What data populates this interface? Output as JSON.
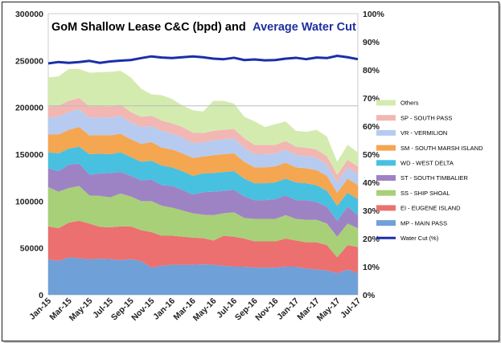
{
  "chart_data": {
    "type": "area",
    "title_main": "GoM Shallow Lease C&C  (bpd) and",
    "title_accent": "Average Water Cut",
    "x": [
      "Jan-15",
      "Feb-15",
      "Mar-15",
      "Apr-15",
      "May-15",
      "Jun-15",
      "Jul-15",
      "Aug-15",
      "Sep-15",
      "Oct-15",
      "Nov-15",
      "Dec-15",
      "Jan-16",
      "Feb-16",
      "Mar-16",
      "Apr-16",
      "May-16",
      "Jun-16",
      "Jul-16",
      "Aug-16",
      "Sep-16",
      "Oct-16",
      "Nov-16",
      "Dec-16",
      "Jan-17",
      "Feb-17",
      "Mar-17",
      "Apr-17",
      "May-17",
      "Jun-17",
      "Jul-17"
    ],
    "x_tick_labels": [
      "Jan-15",
      "Mar-15",
      "May-15",
      "Jul-15",
      "Sep-15",
      "Nov-15",
      "Jan-16",
      "Mar-16",
      "May-16",
      "Jul-16",
      "Sep-16",
      "Nov-16",
      "Jan-17",
      "Mar-17",
      "May-17",
      "Jul-17"
    ],
    "ylim": [
      0,
      300000
    ],
    "y_tick_labels": [
      "0",
      "50000",
      "100000",
      "150000",
      "200000",
      "250000",
      "300000"
    ],
    "y2lim": [
      0,
      100
    ],
    "y2_tick_labels": [
      "0%",
      "10%",
      "20%",
      "30%",
      "40%",
      "50%",
      "60%",
      "70%",
      "80%",
      "90%",
      "100%"
    ],
    "stacked": true,
    "series": [
      {
        "name": "MP - MAIN PASS",
        "color": "#6fa0d8",
        "values": [
          38000,
          36000,
          40000,
          39000,
          38000,
          38500,
          38000,
          37000,
          38000,
          36000,
          29000,
          31000,
          32000,
          32000,
          32000,
          32500,
          32000,
          31000,
          30000,
          30000,
          29000,
          29000,
          29000,
          30000,
          30000,
          28000,
          27000,
          26000,
          23000,
          27000,
          23000
        ]
      },
      {
        "name": "EI - EUGENE ISLAND",
        "color": "#ec7070",
        "values": [
          35000,
          35000,
          37000,
          40000,
          38000,
          34000,
          34000,
          36000,
          35000,
          33000,
          38000,
          32000,
          31000,
          30000,
          29000,
          28000,
          26000,
          32000,
          32000,
          30000,
          28000,
          28000,
          28000,
          30000,
          28000,
          28000,
          29000,
          27000,
          17000,
          26000,
          28000
        ]
      },
      {
        "name": "SS - SHIP SHOAL",
        "color": "#a8d078",
        "values": [
          42000,
          39000,
          37000,
          37000,
          30000,
          33000,
          32000,
          35000,
          32000,
          31000,
          33000,
          32000,
          30000,
          28000,
          26000,
          25000,
          27000,
          24000,
          26000,
          22000,
          24000,
          24000,
          24000,
          25000,
          23000,
          24000,
          24000,
          23000,
          22000,
          23000,
          20000
        ]
      },
      {
        "name": "ST - SOUTH TIMBALIER",
        "color": "#9e83c4",
        "values": [
          20000,
          22000,
          25000,
          24000,
          22000,
          24000,
          26000,
          23000,
          22000,
          22000,
          23000,
          22000,
          23000,
          22000,
          20000,
          24000,
          25000,
          24000,
          24000,
          23000,
          20000,
          20000,
          21000,
          21000,
          20000,
          21000,
          19000,
          18000,
          17000,
          18000,
          14000
        ]
      },
      {
        "name": "WD - WEST DELTA",
        "color": "#48c0e0",
        "values": [
          17000,
          19000,
          17000,
          18000,
          22000,
          21000,
          20000,
          21000,
          20000,
          20000,
          20000,
          21000,
          20000,
          20000,
          20000,
          20000,
          20000,
          20000,
          20000,
          19000,
          18000,
          18000,
          18000,
          18000,
          19000,
          18000,
          18000,
          17000,
          16000,
          15000,
          17000
        ]
      },
      {
        "name": "SM - SOUTH MARSH ISLAND",
        "color": "#f5a650",
        "values": [
          19000,
          20000,
          20000,
          21000,
          20000,
          20000,
          20000,
          20000,
          19000,
          19000,
          20000,
          19000,
          19000,
          19000,
          19000,
          18000,
          19000,
          19000,
          19000,
          18000,
          17000,
          17000,
          17000,
          17000,
          16000,
          16000,
          16000,
          16000,
          14000,
          15000,
          15000
        ]
      },
      {
        "name": "VR - VERMILION",
        "color": "#b7cbf0",
        "values": [
          18000,
          19000,
          19000,
          19000,
          19000,
          19000,
          19000,
          19000,
          18000,
          18000,
          17000,
          18000,
          17000,
          17000,
          16000,
          15000,
          16000,
          16000,
          16000,
          15000,
          14000,
          14000,
          14000,
          14000,
          13000,
          13000,
          13000,
          12000,
          11000,
          12000,
          12000
        ]
      },
      {
        "name": "SP - SOUTH PASS",
        "color": "#f2b7b2",
        "values": [
          12000,
          12000,
          12000,
          12000,
          12000,
          12000,
          12000,
          12000,
          11000,
          11000,
          11000,
          11000,
          11000,
          11000,
          11000,
          10000,
          10000,
          10000,
          10000,
          10000,
          10000,
          10000,
          9000,
          9000,
          9000,
          9000,
          9000,
          9000,
          8000,
          8000,
          8000
        ]
      },
      {
        "name": "Others",
        "color": "#d4ebb0",
        "values": [
          31000,
          31000,
          34000,
          31000,
          36000,
          36000,
          37000,
          36000,
          37000,
          30000,
          23000,
          27000,
          26000,
          23000,
          24000,
          23000,
          32000,
          31000,
          27000,
          23000,
          25000,
          19000,
          22000,
          21000,
          17000,
          17000,
          21000,
          21000,
          14000,
          16000,
          15000
        ]
      }
    ],
    "line_series": {
      "name": "Water Cut (%)",
      "color": "#1b2fa8",
      "axis": "right",
      "values": [
        82.3,
        82.8,
        82.5,
        82.8,
        83.2,
        82.5,
        83.0,
        83.3,
        83.5,
        84.2,
        84.8,
        84.4,
        84.2,
        84.5,
        84.8,
        84.5,
        84.0,
        83.8,
        84.3,
        83.5,
        83.7,
        83.4,
        83.5,
        84.0,
        84.3,
        83.8,
        84.4,
        84.2,
        85.0,
        84.5,
        83.8
      ]
    },
    "grid": false,
    "legend_position": "right",
    "legend_order": [
      "Others",
      "SP - SOUTH PASS",
      "VR - VERMILION",
      "SM - SOUTH MARSH ISLAND",
      "WD - WEST DELTA",
      "ST - SOUTH TIMBALIER",
      "SS - SHIP SHOAL",
      "EI - EUGENE ISLAND",
      "MP - MAIN PASS",
      "Water Cut (%)"
    ]
  }
}
